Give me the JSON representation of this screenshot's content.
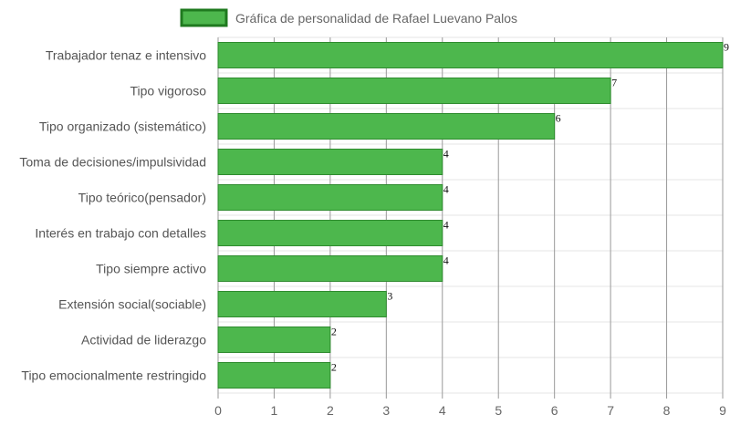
{
  "colors": {
    "bar_fill": "#4db74d",
    "bar_stroke": "#2e8b2e",
    "legend_fill": "#4db74d",
    "legend_stroke": "#1f7a1f",
    "vertical_grid": "#999999",
    "horizontal_grid": "#e6e6e6"
  },
  "chart_data": {
    "type": "bar",
    "orientation": "horizontal",
    "legend": "top-center",
    "grid": true,
    "categories": [
      "Trabajador tenaz e intensivo",
      "Tipo vigoroso",
      "Tipo organizado (sistemático)",
      "Toma de decisiones/impulsividad",
      "Tipo teórico(pensador)",
      "Interés en trabajo con detalles",
      "Tipo siempre activo",
      "Extensión social(sociable)",
      "Actividad de liderazgo",
      "Tipo emocionalmente restringido"
    ],
    "series": [
      {
        "name": "Gráfica de personalidad de Rafael Luevano Palos",
        "values": [
          9,
          7,
          6,
          4,
          4,
          4,
          4,
          3,
          2,
          2
        ]
      }
    ],
    "xlim": [
      0,
      9
    ],
    "xticks": [
      "0",
      "1",
      "2",
      "3",
      "4",
      "5",
      "6",
      "7",
      "8",
      "9"
    ],
    "data_labels": [
      "9",
      "7",
      "6",
      "4",
      "4",
      "4",
      "4",
      "3",
      "2",
      "2"
    ]
  }
}
